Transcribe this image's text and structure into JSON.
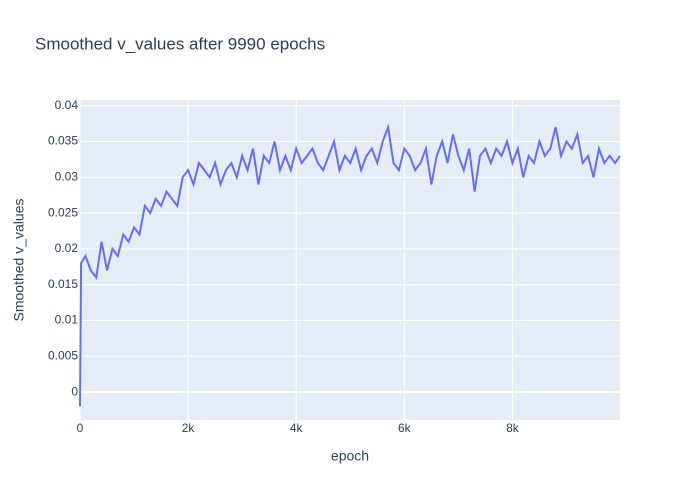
{
  "chart_data": {
    "type": "line",
    "title": "Smoothed v_values after 9990 epochs",
    "xlabel": "epoch",
    "ylabel": "Smoothed v_values",
    "x": [
      0,
      20,
      100,
      200,
      300,
      400,
      500,
      600,
      700,
      800,
      900,
      1000,
      1100,
      1200,
      1300,
      1400,
      1500,
      1600,
      1700,
      1800,
      1900,
      2000,
      2100,
      2200,
      2300,
      2400,
      2500,
      2600,
      2700,
      2800,
      2900,
      3000,
      3100,
      3200,
      3300,
      3400,
      3500,
      3600,
      3700,
      3800,
      3900,
      4000,
      4100,
      4200,
      4300,
      4400,
      4500,
      4600,
      4700,
      4800,
      4900,
      5000,
      5100,
      5200,
      5300,
      5400,
      5500,
      5600,
      5700,
      5800,
      5900,
      6000,
      6100,
      6200,
      6300,
      6400,
      6500,
      6600,
      6700,
      6800,
      6900,
      7000,
      7100,
      7200,
      7300,
      7400,
      7500,
      7600,
      7700,
      7800,
      7900,
      8000,
      8100,
      8200,
      8300,
      8400,
      8500,
      8600,
      8700,
      8800,
      8900,
      9000,
      9100,
      9200,
      9300,
      9400,
      9500,
      9600,
      9700,
      9800,
      9900,
      9990
    ],
    "series": [
      {
        "color": "#636efa",
        "values": [
          -0.002,
          0.018,
          0.019,
          0.017,
          0.016,
          0.021,
          0.017,
          0.02,
          0.019,
          0.022,
          0.021,
          0.023,
          0.022,
          0.026,
          0.025,
          0.027,
          0.026,
          0.028,
          0.027,
          0.026,
          0.03,
          0.031,
          0.029,
          0.032,
          0.031,
          0.03,
          0.032,
          0.029,
          0.031,
          0.032,
          0.03,
          0.033,
          0.031,
          0.034,
          0.029,
          0.033,
          0.032,
          0.035,
          0.031,
          0.033,
          0.031,
          0.034,
          0.032,
          0.033,
          0.034,
          0.032,
          0.031,
          0.033,
          0.035,
          0.031,
          0.033,
          0.032,
          0.034,
          0.031,
          0.033,
          0.034,
          0.032,
          0.035,
          0.037,
          0.032,
          0.031,
          0.034,
          0.033,
          0.031,
          0.032,
          0.034,
          0.029,
          0.033,
          0.035,
          0.032,
          0.036,
          0.033,
          0.031,
          0.034,
          0.028,
          0.033,
          0.034,
          0.032,
          0.034,
          0.033,
          0.035,
          0.032,
          0.034,
          0.03,
          0.033,
          0.032,
          0.035,
          0.033,
          0.034,
          0.037,
          0.033,
          0.035,
          0.034,
          0.036,
          0.032,
          0.033,
          0.03,
          0.034,
          0.032,
          0.033,
          0.032,
          0.033
        ]
      }
    ],
    "xlim": [
      0,
      9990
    ],
    "ylim": [
      -0.0039,
      0.0408
    ],
    "xticks": [
      0,
      {
        "value": 2000,
        "label": "2k"
      },
      {
        "value": 4000,
        "label": "4k"
      },
      {
        "value": 6000,
        "label": "6k"
      },
      {
        "value": 8000,
        "label": "8k"
      }
    ],
    "yticks": [
      0,
      0.005,
      0.01,
      0.015,
      0.02,
      0.025,
      0.03,
      0.035,
      0.04
    ],
    "grid": true,
    "background": "#e5ecf6"
  }
}
